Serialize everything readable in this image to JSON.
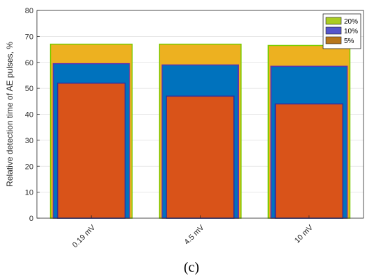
{
  "chart_data": {
    "type": "bar",
    "categories": [
      "0.19 mV",
      "4.5 mV",
      "10 mV"
    ],
    "ylabel": "Relative detection time of AE pulses, %",
    "xlabel": "",
    "ylim": [
      0,
      80
    ],
    "yticks": [
      0,
      10,
      20,
      30,
      40,
      50,
      60,
      70,
      80
    ],
    "grid": true,
    "legend_position": "top-right",
    "series": [
      {
        "name": "20%",
        "values": [
          67,
          67,
          66.5
        ],
        "color": "#EDB120",
        "legend_color": "#AACC22",
        "edge_color": "#7ACC00"
      },
      {
        "name": "10%",
        "values": [
          59.5,
          59,
          58.5
        ],
        "color": "#0072BD",
        "legend_color": "#5555CC",
        "edge_color": "#6030B0"
      },
      {
        "name": "5%",
        "values": [
          52,
          47,
          44
        ],
        "color": "#D95319",
        "legend_color": "#B8761A",
        "edge_color": "#3030A0"
      }
    ],
    "caption": "(c)"
  }
}
